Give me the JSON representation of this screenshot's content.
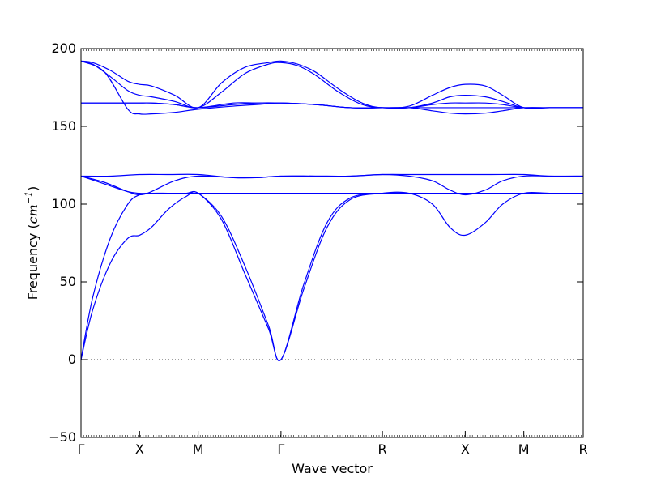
{
  "chart_data": {
    "type": "line",
    "title": "",
    "xlabel": "Wave vector",
    "ylabel_prefix": "Frequency (",
    "ylabel_unit_base": "cm",
    "ylabel_unit_exp": "−1",
    "ylabel_suffix": ")",
    "ylim": [
      -50,
      200
    ],
    "yticks": [
      -50,
      0,
      50,
      100,
      150,
      200
    ],
    "ytick_labels": [
      "−50",
      "0",
      "50",
      "100",
      "150",
      "200"
    ],
    "xticks": [
      {
        "label": "Γ",
        "x": 0.0
      },
      {
        "label": "X",
        "x": 0.5
      },
      {
        "label": "M",
        "x": 1.0
      },
      {
        "label": "Γ",
        "x": 1.707
      },
      {
        "label": "R",
        "x": 2.573
      },
      {
        "label": "X",
        "x": 3.28
      },
      {
        "label": "M",
        "x": 3.78
      },
      {
        "label": "R",
        "x": 4.287
      }
    ],
    "xlim": [
      0,
      4.287
    ],
    "zero_line": true,
    "color": "#0000ff",
    "series": [
      {
        "x": [
          0,
          0.1,
          0.25,
          0.4,
          0.5,
          0.6,
          0.75,
          0.9,
          1.0,
          1.2,
          1.4,
          1.6,
          1.707,
          1.9,
          2.1,
          2.3,
          2.573,
          2.8,
          3.0,
          3.15,
          3.28,
          3.45,
          3.6,
          3.78,
          4.0,
          4.287
        ],
        "y": [
          0,
          32,
          62,
          78,
          80,
          85,
          97,
          105,
          107,
          90,
          55,
          20,
          0,
          45,
          85,
          103,
          107,
          107,
          100,
          85,
          80,
          88,
          100,
          107,
          107,
          107
        ]
      },
      {
        "x": [
          0,
          0.1,
          0.25,
          0.4,
          0.5,
          0.6,
          0.75,
          0.9,
          1.0,
          1.2,
          1.4,
          1.6,
          1.707,
          1.9,
          2.1,
          2.3,
          2.573,
          2.8,
          3.0,
          3.15,
          3.28,
          3.45,
          3.6,
          3.78,
          4.0,
          4.287
        ],
        "y": [
          0,
          40,
          78,
          100,
          106,
          107,
          107,
          107,
          107,
          92,
          60,
          22,
          0,
          48,
          88,
          104,
          107,
          107,
          107,
          107,
          107,
          107,
          107,
          107,
          107,
          107
        ]
      },
      {
        "x": [
          0,
          0.2,
          0.4,
          0.5,
          0.6,
          0.8,
          1.0,
          1.3,
          1.5,
          1.707,
          2.0,
          2.3,
          2.573,
          2.8,
          3.0,
          3.15,
          3.28,
          3.45,
          3.6,
          3.78,
          4.0,
          4.287
        ],
        "y": [
          118,
          113,
          108,
          107,
          107,
          107,
          107,
          107,
          107,
          107,
          107,
          107,
          107,
          107,
          107,
          107,
          107,
          107,
          107,
          107,
          107,
          107
        ]
      },
      {
        "x": [
          0,
          0.2,
          0.4,
          0.5,
          0.6,
          0.8,
          1.0,
          1.3,
          1.5,
          1.707,
          2.0,
          2.3,
          2.573,
          2.8,
          3.0,
          3.15,
          3.28,
          3.45,
          3.6,
          3.78,
          4.0,
          4.287
        ],
        "y": [
          118,
          114,
          108,
          106,
          108,
          115,
          118,
          117,
          117,
          118,
          118,
          118,
          119,
          118,
          115,
          109,
          106,
          109,
          115,
          118,
          118,
          118
        ]
      },
      {
        "x": [
          0,
          0.25,
          0.5,
          0.75,
          1.0,
          1.3,
          1.5,
          1.707,
          2.0,
          2.3,
          2.573,
          2.8,
          3.0,
          3.28,
          3.5,
          3.78,
          4.0,
          4.287
        ],
        "y": [
          118,
          118,
          119,
          119,
          119,
          117,
          117,
          118,
          118,
          118,
          119,
          119,
          119,
          119,
          119,
          119,
          118,
          118
        ]
      },
      {
        "x": [
          0,
          0.2,
          0.4,
          0.5,
          0.6,
          0.8,
          1.0,
          1.3,
          1.5,
          1.707,
          2.0,
          2.3,
          2.573,
          2.8,
          3.0,
          3.15,
          3.28,
          3.45,
          3.6,
          3.78,
          4.0,
          4.287
        ],
        "y": [
          165,
          165,
          165,
          165,
          165,
          164,
          162,
          164,
          165,
          165,
          164,
          162,
          162,
          162,
          162,
          162,
          162,
          162,
          162,
          162,
          162,
          162
        ]
      },
      {
        "x": [
          0,
          0.2,
          0.4,
          0.5,
          0.6,
          0.8,
          1.0,
          1.3,
          1.5,
          1.707,
          2.0,
          2.3,
          2.573,
          2.8,
          3.0,
          3.15,
          3.28,
          3.45,
          3.6,
          3.78,
          4.0,
          4.287
        ],
        "y": [
          165,
          165,
          165,
          165,
          165,
          164,
          162,
          165,
          165,
          165,
          164,
          162,
          162,
          162,
          164,
          165,
          165,
          165,
          164,
          162,
          162,
          162
        ]
      },
      {
        "x": [
          0,
          0.2,
          0.4,
          0.5,
          0.6,
          0.8,
          1.0,
          1.3,
          1.5,
          1.707,
          2.0,
          2.3,
          2.573,
          2.8,
          3.0,
          3.15,
          3.28,
          3.45,
          3.6,
          3.78,
          4.0,
          4.287
        ],
        "y": [
          192,
          185,
          161,
          158,
          158,
          159,
          161,
          163,
          164,
          165,
          164,
          162,
          162,
          162,
          160,
          158.5,
          158,
          158.5,
          160,
          162,
          162,
          162
        ]
      },
      {
        "x": [
          0,
          0.1,
          0.25,
          0.4,
          0.5,
          0.6,
          0.8,
          1.0,
          1.2,
          1.4,
          1.6,
          1.707,
          1.85,
          2.0,
          2.2,
          2.4,
          2.573,
          2.8,
          3.0,
          3.15,
          3.28,
          3.45,
          3.6,
          3.78,
          4.0,
          4.287
        ],
        "y": [
          192,
          190,
          182,
          173,
          170,
          169,
          166,
          162,
          172,
          184,
          190,
          191,
          189,
          183,
          172,
          164,
          162,
          162,
          165,
          169,
          170,
          169,
          166,
          162,
          162,
          162
        ]
      },
      {
        "x": [
          0,
          0.1,
          0.25,
          0.4,
          0.5,
          0.6,
          0.8,
          1.0,
          1.2,
          1.4,
          1.6,
          1.707,
          1.85,
          2.0,
          2.2,
          2.4,
          2.573,
          2.8,
          3.0,
          3.15,
          3.28,
          3.45,
          3.6,
          3.78,
          4.0,
          4.287
        ],
        "y": [
          192,
          191,
          186,
          179,
          177,
          176,
          170,
          162,
          178,
          188,
          191,
          192,
          190,
          185,
          174,
          165,
          162,
          163,
          170,
          175,
          177,
          176,
          170,
          162,
          162,
          162
        ]
      }
    ]
  }
}
